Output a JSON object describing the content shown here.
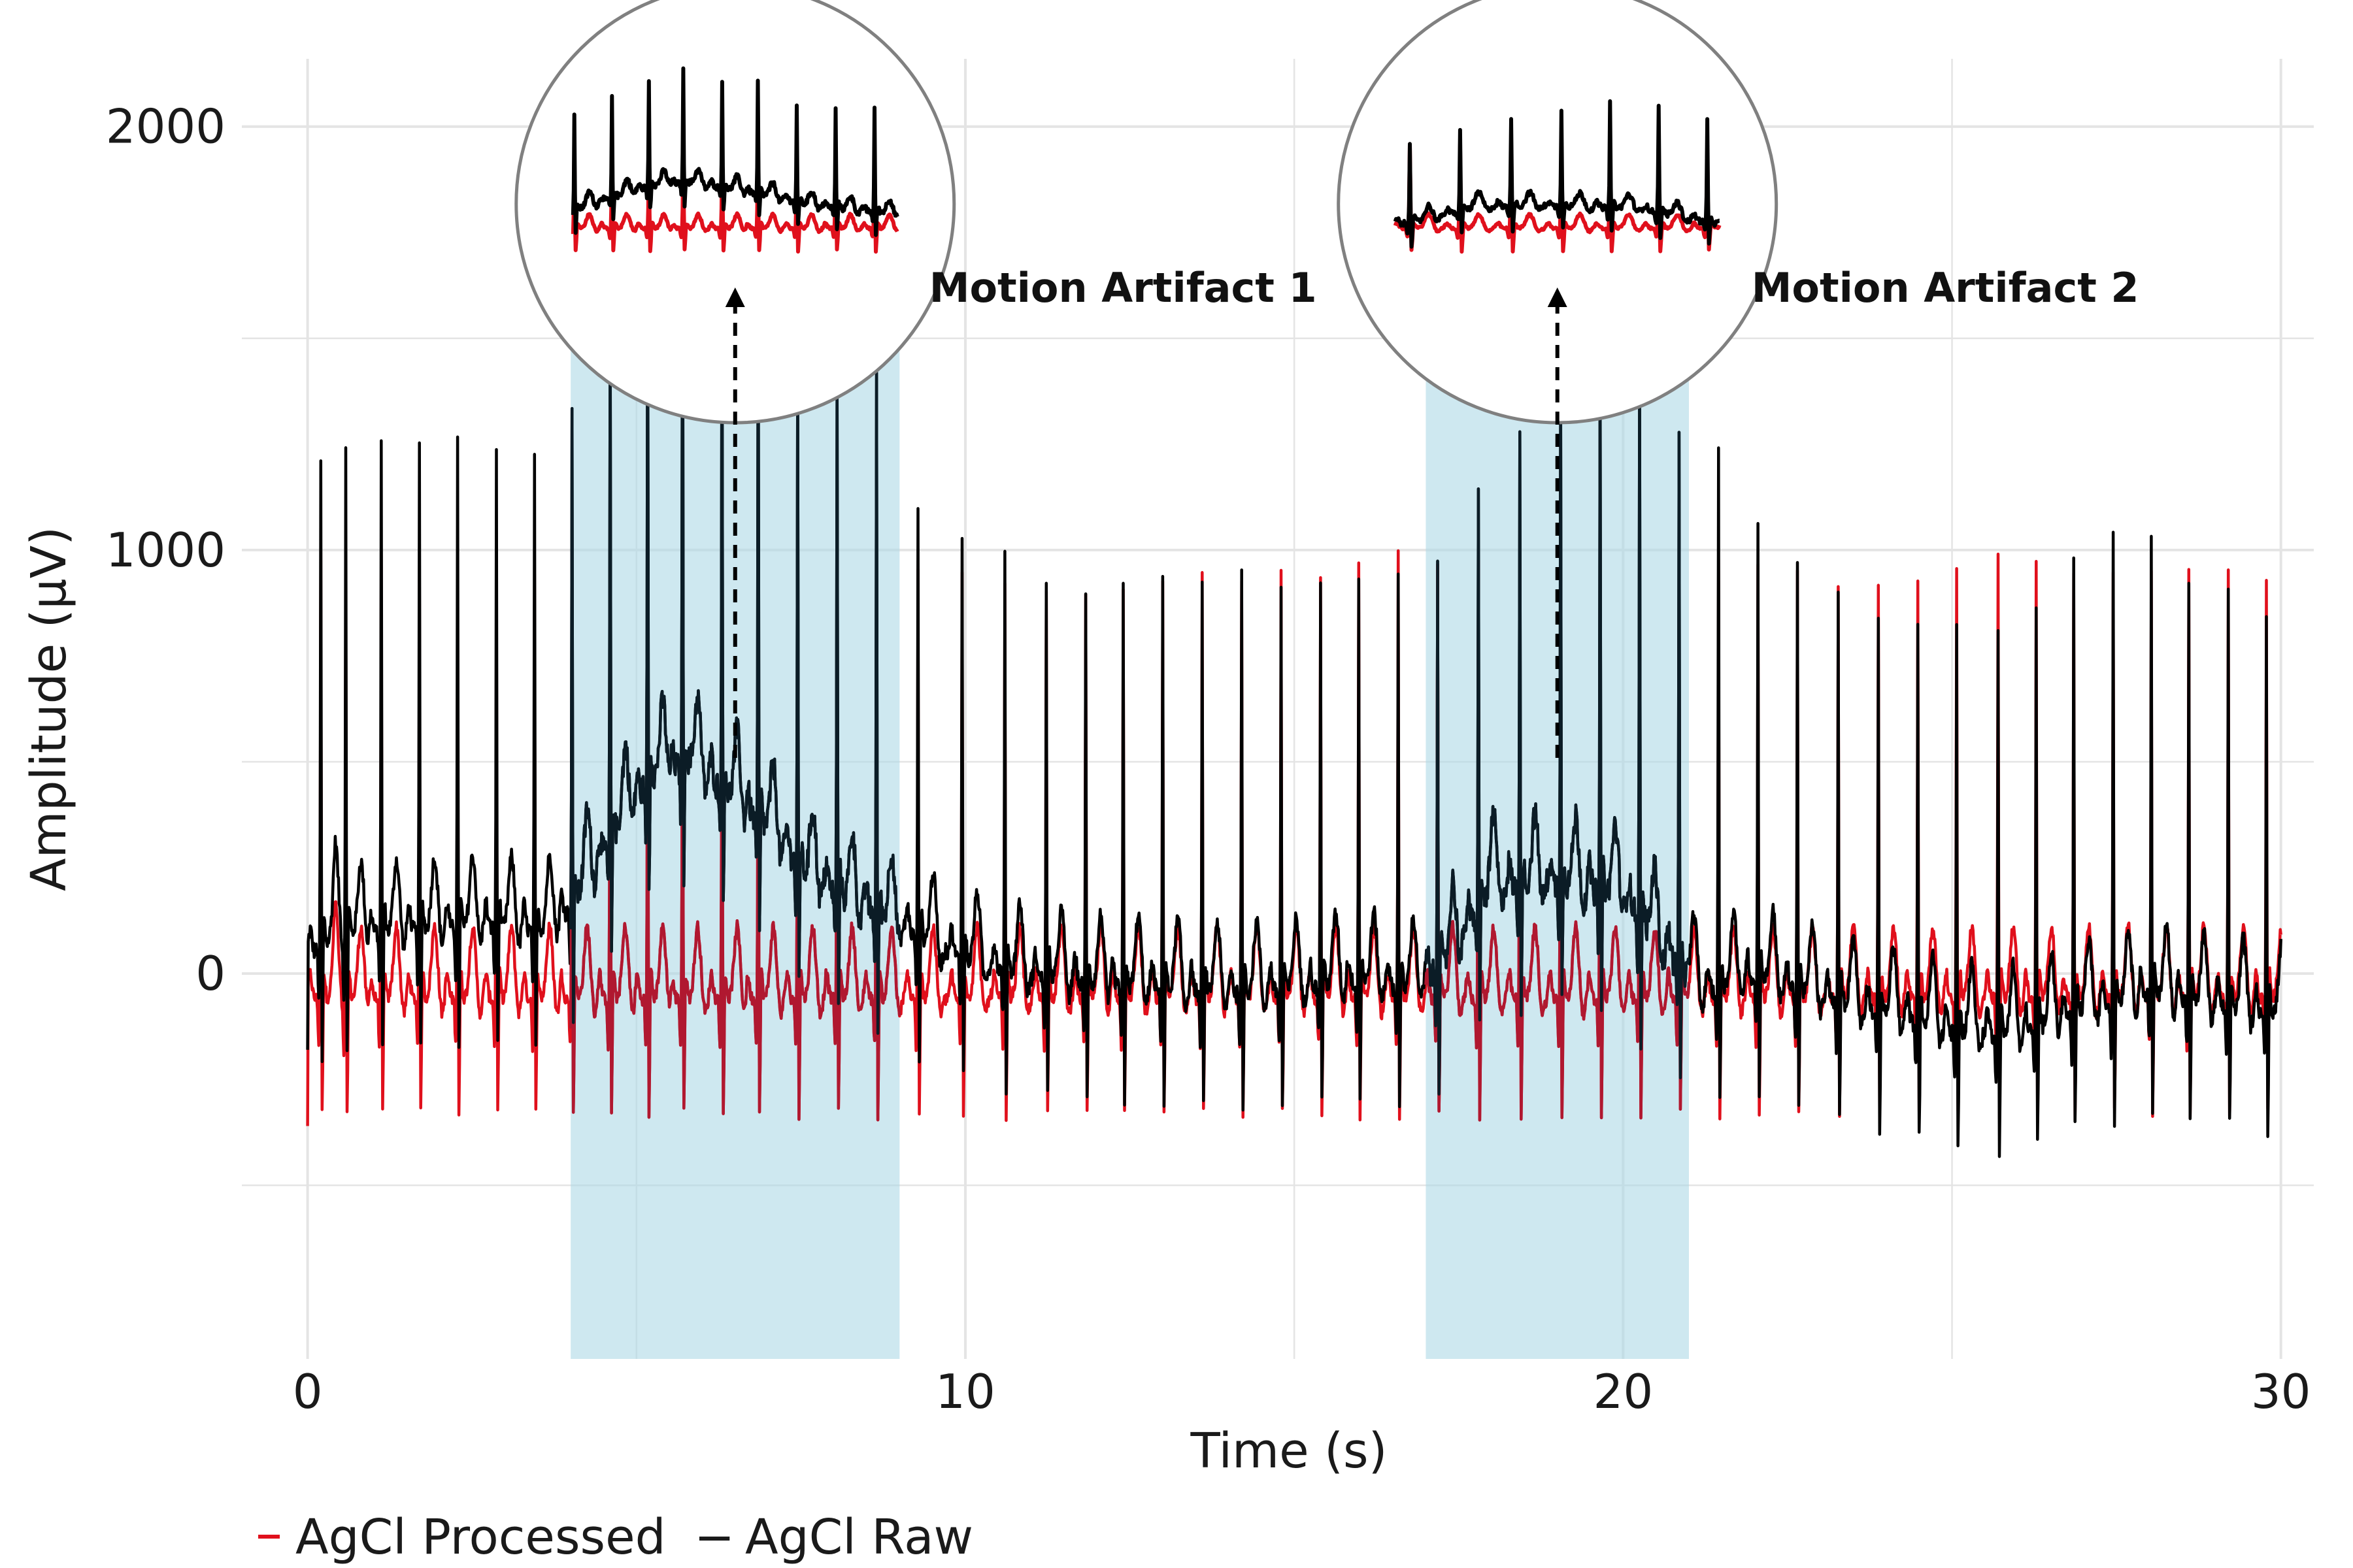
{
  "chart_data": {
    "type": "line",
    "xlabel": "Time (s)",
    "ylabel": "Amplitude (µV)",
    "xlim": [
      -1,
      30.5
    ],
    "ylim": [
      -910,
      2160
    ],
    "x_ticks": [
      0,
      10,
      20,
      30
    ],
    "y_ticks": [
      0,
      1000,
      2000
    ],
    "grid": true,
    "legend_position": "bottom-left",
    "legend_separator": "−",
    "sample_rate_hz": 100,
    "beat_times_s": [
      0.2,
      0.58,
      1.12,
      1.7,
      2.28,
      2.87,
      3.45,
      4.02,
      4.6,
      5.17,
      5.7,
      6.3,
      6.85,
      7.45,
      8.05,
      8.65,
      9.28,
      9.95,
      10.6,
      11.23,
      11.83,
      12.4,
      13.0,
      13.6,
      14.2,
      14.8,
      15.4,
      15.98,
      16.58,
      17.18,
      17.8,
      18.43,
      19.05,
      19.65,
      20.25,
      20.85,
      21.45,
      22.05,
      22.65,
      23.27,
      23.88,
      24.48,
      25.07,
      25.7,
      26.28,
      26.85,
      27.45,
      28.03,
      28.6,
      29.2,
      29.78
    ],
    "raw_r_peaks_uV": [
      1160,
      1165,
      1160,
      1160,
      1150,
      1120,
      1115,
      1200,
      1230,
      1320,
      1390,
      1330,
      1380,
      1160,
      1250,
      1270,
      1030,
      1020,
      990,
      960,
      930,
      960,
      990,
      980,
      990,
      970,
      965,
      960,
      980,
      1010,
      1010,
      1050,
      1210,
      1280,
      1300,
      1290,
      1290,
      1080,
      1030,
      960,
      960,
      960,
      960,
      970,
      990,
      1070,
      1130,
      1080,
      980,
      980,
      940
    ],
    "raw_baseline": {
      "knots_s": [
        0,
        0.5,
        1.5,
        2.5,
        3.6,
        4.0,
        4.6,
        5.2,
        5.8,
        6.4,
        7.0,
        7.6,
        8.2,
        8.8,
        9.2,
        10,
        11,
        12,
        13,
        14,
        15,
        16,
        16.8,
        17.3,
        18,
        19,
        20,
        20.6,
        21.2,
        22,
        23,
        24,
        25,
        26,
        27,
        28,
        29,
        30
      ],
      "values_uV": [
        40,
        90,
        100,
        110,
        100,
        150,
        310,
        460,
        500,
        420,
        340,
        230,
        170,
        130,
        90,
        30,
        -10,
        -30,
        -40,
        -50,
        -40,
        -20,
        -40,
        20,
        200,
        210,
        180,
        60,
        -50,
        -10,
        -60,
        -100,
        -140,
        -150,
        -90,
        -50,
        -80,
        -100
      ]
    },
    "processed_r_peaks_uV": [
      1050,
      1050,
      1040,
      1040,
      1030,
      1000,
      1000,
      1040,
      1050,
      1060,
      1050,
      1060,
      1040,
      1040,
      1030,
      1030,
      1010,
      1010,
      980,
      970,
      970,
      980,
      1000,
      1000,
      1000,
      1010,
      1010,
      1050,
      1060,
      1040,
      1050,
      1040,
      1040,
      1040,
      1030,
      1040,
      1040,
      1020,
      1010,
      980,
      990,
      990,
      1020,
      1050,
      1040,
      1020,
      1000,
      1010,
      1010,
      1010,
      1010
    ],
    "shaded_regions": [
      {
        "x": [
          4.0,
          9.0
        ],
        "label": "Motion Artifact 1",
        "zoom_center_x": 6.5
      },
      {
        "x": [
          17.0,
          21.0
        ],
        "label": "Motion Artifact 2",
        "zoom_center_x": 19.0
      }
    ],
    "annotations": [
      "Motion Artifact 1",
      "Motion Artifact 2"
    ],
    "series": [
      {
        "name": "AgCl Processed",
        "color": "#e0101c"
      },
      {
        "name": "AgCl Raw",
        "color": "#000000"
      }
    ],
    "colors": {
      "shade": "#add8e6",
      "grid": "#e4e4e4",
      "circle_stroke": "#808080",
      "raw_in_shade": "#0b1c26",
      "processed_in_shade": "#b01830"
    }
  }
}
